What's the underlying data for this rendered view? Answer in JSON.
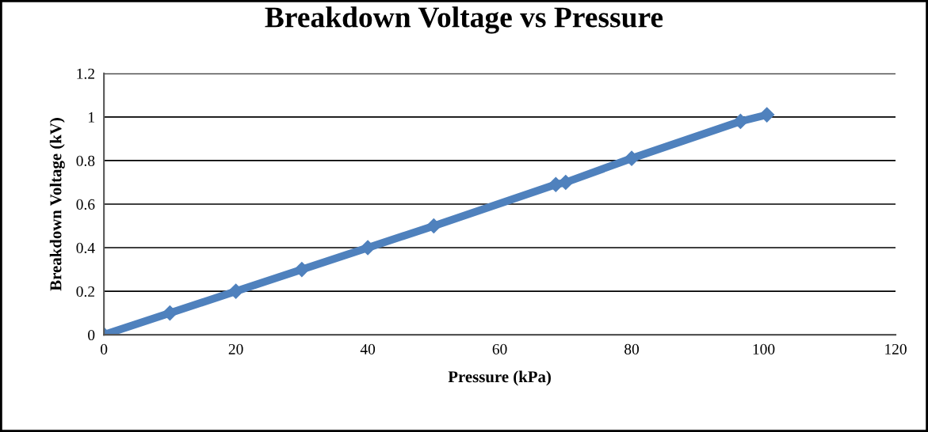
{
  "chart_data": {
    "type": "line",
    "title": "Breakdown Voltage vs Pressure",
    "xlabel": "Pressure (kPa)",
    "ylabel": "Breakdown Voltage (kV)",
    "series": [
      {
        "color": "#4f81bd",
        "x": [
          0,
          10,
          20,
          30,
          40,
          50,
          68.5,
          70,
          80,
          96.5,
          100.5
        ],
        "values": [
          0,
          0.1,
          0.2,
          0.3,
          0.4,
          0.5,
          0.69,
          0.7,
          0.81,
          0.98,
          1.01
        ]
      }
    ],
    "xlim": [
      0,
      120
    ],
    "xticks": [
      0,
      20,
      40,
      60,
      80,
      100,
      120
    ],
    "ylim": [
      0,
      1.2
    ],
    "yticks": [
      0,
      0.2,
      0.4,
      0.6,
      0.8,
      1,
      1.2
    ],
    "grid": "y",
    "marker": "diamond",
    "line_style": "solid",
    "legend": false
  }
}
